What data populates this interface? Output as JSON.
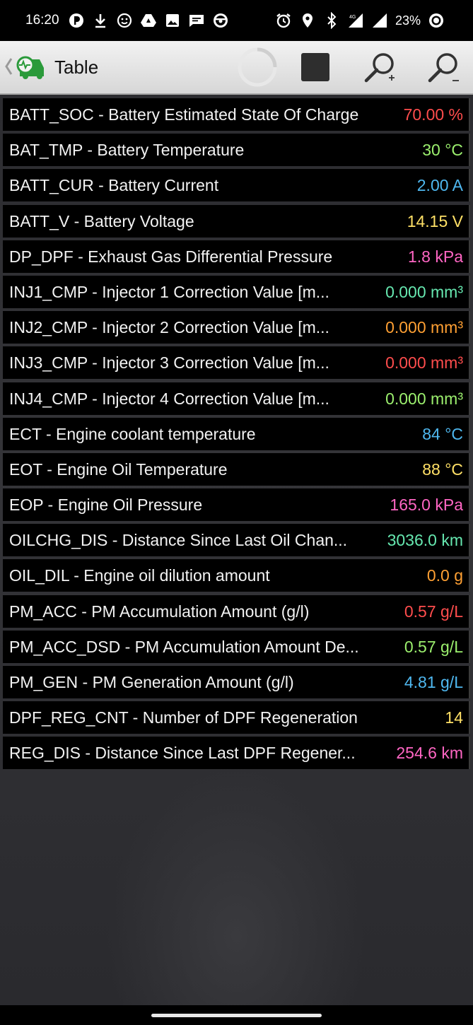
{
  "status_bar": {
    "time": "16:20",
    "battery_percent": "23%",
    "network": "4G",
    "left_icons": [
      "data-saver-icon",
      "download-icon",
      "face-icon",
      "drive-icon",
      "gallery-icon",
      "message-icon",
      "steering-wheel-icon"
    ],
    "right_icons": [
      "alarm-icon",
      "location-icon",
      "bluetooth-icon",
      "cellular-signal-icon",
      "wifi-signal-icon",
      "battery-circle-icon"
    ]
  },
  "toolbar": {
    "title": "Table",
    "buttons": [
      "back",
      "loading",
      "stop",
      "zoom-in",
      "zoom-out"
    ]
  },
  "rows": [
    {
      "label": "BATT_SOC - Battery Estimated State Of Charge",
      "value": "70.00 %",
      "color": "#ff4d4d"
    },
    {
      "label": "BAT_TMP - Battery Temperature",
      "value": "30 °C",
      "color": "#9cf06e"
    },
    {
      "label": "BATT_CUR - Battery Current",
      "value": "2.00 A",
      "color": "#4fb8f0"
    },
    {
      "label": "BATT_V - Battery Voltage",
      "value": "14.15 V",
      "color": "#ffe066"
    },
    {
      "label": "DP_DPF - Exhaust Gas Differential Pressure",
      "value": "1.8 kPa",
      "color": "#ff66c4"
    },
    {
      "label": "INJ1_CMP - Injector 1 Correction Value [m...",
      "value": "0.000 mm³",
      "color": "#66e8b0"
    },
    {
      "label": "INJ2_CMP - Injector 2 Correction Value [m...",
      "value": "0.000 mm³",
      "color": "#ffa033"
    },
    {
      "label": "INJ3_CMP - Injector 3 Correction Value [m...",
      "value": "0.000 mm³",
      "color": "#ff4d4d"
    },
    {
      "label": "INJ4_CMP - Injector 4 Correction Value [m...",
      "value": "0.000 mm³",
      "color": "#9cf06e"
    },
    {
      "label": "ECT - Engine coolant temperature",
      "value": "84 °C",
      "color": "#4fb8f0"
    },
    {
      "label": "EOT - Engine Oil Temperature",
      "value": "88 °C",
      "color": "#ffe066"
    },
    {
      "label": "EOP - Engine Oil Pressure",
      "value": "165.0 kPa",
      "color": "#ff66c4"
    },
    {
      "label": "OILCHG_DIS - Distance Since Last Oil Chan...",
      "value": "3036.0 km",
      "color": "#66e8b0"
    },
    {
      "label": "OIL_DIL - Engine oil dilution amount",
      "value": "0.0 g",
      "color": "#ffa033"
    },
    {
      "label": "PM_ACC - PM Accumulation Amount (g/l)",
      "value": "0.57 g/L",
      "color": "#ff4d4d"
    },
    {
      "label": "PM_ACC_DSD - PM Accumulation Amount De...",
      "value": "0.57 g/L",
      "color": "#9cf06e"
    },
    {
      "label": "PM_GEN - PM Generation Amount (g/l)",
      "value": "4.81 g/L",
      "color": "#4fb8f0"
    },
    {
      "label": "DPF_REG_CNT - Number of DPF Regeneration",
      "value": "14",
      "color": "#ffe066"
    },
    {
      "label": "REG_DIS - Distance Since Last DPF Regener...",
      "value": "254.6 km",
      "color": "#ff66c4"
    }
  ]
}
